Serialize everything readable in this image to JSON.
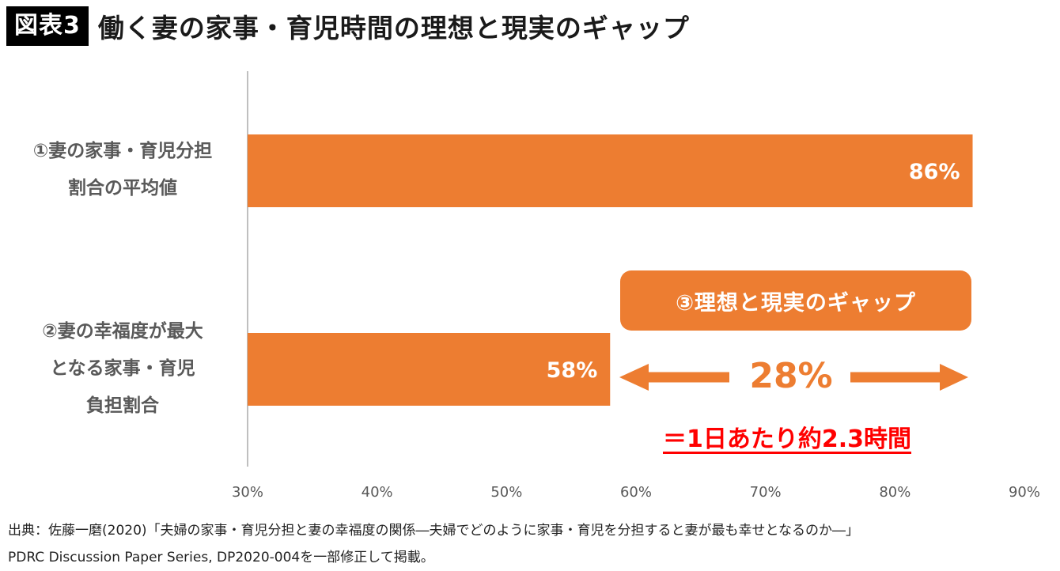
{
  "header": {
    "tag": "図表3",
    "title": "働く妻の家事・育児時間の理想と現実のギャップ"
  },
  "chart_data": {
    "type": "bar",
    "orientation": "horizontal",
    "categories": [
      [
        "①妻の家事・育児分担",
        "割合の平均値"
      ],
      [
        "②妻の幸福度が最大",
        "となる家事・育児",
        "負担割合"
      ]
    ],
    "values": [
      86,
      58
    ],
    "value_labels": [
      "86%",
      "58%"
    ],
    "xlim": [
      30,
      90
    ],
    "xticks": [
      "30%",
      "40%",
      "50%",
      "60%",
      "70%",
      "80%",
      "90%"
    ],
    "bar_color": "#ED7D31",
    "grid": false,
    "annotations": {
      "gap_label": "③理想と現実のギャップ",
      "gap_value": "28%",
      "gap_hours": "＝1日あたり約2.3時間"
    }
  },
  "source": {
    "line1": "出典：佐藤一磨(2020)「夫婦の家事・育児分担と妻の幸福度の関係―夫婦でどのように家事・育児を分担すると妻が最も幸せとなるのか―」",
    "line2": "PDRC Discussion Paper Series, DP2020-004を一部修正して掲載。"
  }
}
